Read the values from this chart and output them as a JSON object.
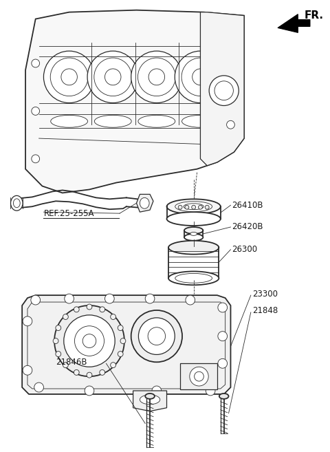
{
  "background_color": "#ffffff",
  "line_color": "#2a2a2a",
  "label_color": "#1a1a1a",
  "fr_label": "FR.",
  "label_26410B": "26410B",
  "label_26420B": "26420B",
  "label_26300": "26300",
  "label_23300": "23300",
  "label_21848": "21848",
  "label_21846B": "21846B",
  "label_ref": "REF.25-255A",
  "figsize": [
    4.8,
    6.57
  ],
  "dpi": 100
}
